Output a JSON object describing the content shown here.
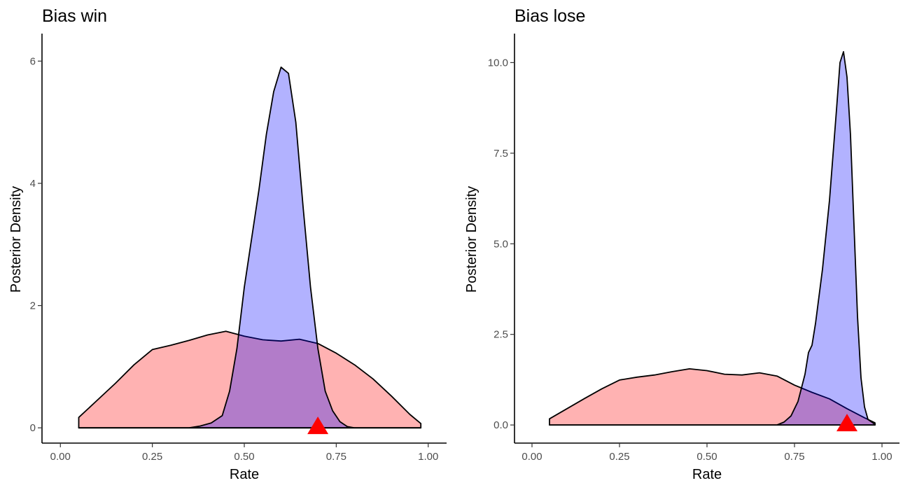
{
  "colors": {
    "prior_fill": "#ff0000",
    "posterior_fill": "#0000ff",
    "fill_opacity": 0.3,
    "outline": "#000000",
    "true_value_marker": "#ff0000"
  },
  "chart_data": [
    {
      "type": "area",
      "title": "Bias win",
      "xlabel": "Rate",
      "ylabel": "Posterior Density",
      "xlim": [
        -0.05,
        1.05
      ],
      "ylim": [
        -0.25,
        6.45
      ],
      "x_ticks": [
        "0.00",
        "0.25",
        "0.50",
        "0.75",
        "1.00"
      ],
      "x_tick_values": [
        0,
        0.25,
        0.5,
        0.75,
        1.0
      ],
      "y_ticks": [
        "0",
        "2",
        "4",
        "6"
      ],
      "y_tick_values": [
        0,
        2,
        4,
        6
      ],
      "grid": false,
      "legend": "none",
      "series": [
        {
          "fill": "#ff0000",
          "points": [
            [
              0.05,
              0.17
            ],
            [
              0.1,
              0.45
            ],
            [
              0.15,
              0.73
            ],
            [
              0.2,
              1.03
            ],
            [
              0.25,
              1.28
            ],
            [
              0.3,
              1.35
            ],
            [
              0.35,
              1.43
            ],
            [
              0.4,
              1.52
            ],
            [
              0.45,
              1.58
            ],
            [
              0.5,
              1.5
            ],
            [
              0.55,
              1.44
            ],
            [
              0.6,
              1.42
            ],
            [
              0.65,
              1.45
            ],
            [
              0.7,
              1.38
            ],
            [
              0.75,
              1.22
            ],
            [
              0.8,
              1.03
            ],
            [
              0.85,
              0.8
            ],
            [
              0.9,
              0.52
            ],
            [
              0.95,
              0.22
            ],
            [
              0.98,
              0.07
            ]
          ]
        },
        {
          "fill": "#0000ff",
          "points": [
            [
              0.05,
              0.0
            ],
            [
              0.35,
              0.0
            ],
            [
              0.38,
              0.03
            ],
            [
              0.41,
              0.08
            ],
            [
              0.44,
              0.2
            ],
            [
              0.46,
              0.6
            ],
            [
              0.48,
              1.3
            ],
            [
              0.5,
              2.3
            ],
            [
              0.52,
              3.1
            ],
            [
              0.54,
              3.9
            ],
            [
              0.56,
              4.8
            ],
            [
              0.58,
              5.5
            ],
            [
              0.6,
              5.9
            ],
            [
              0.62,
              5.8
            ],
            [
              0.64,
              5.0
            ],
            [
              0.66,
              3.6
            ],
            [
              0.68,
              2.3
            ],
            [
              0.7,
              1.3
            ],
            [
              0.72,
              0.6
            ],
            [
              0.74,
              0.28
            ],
            [
              0.76,
              0.1
            ],
            [
              0.78,
              0.02
            ],
            [
              0.8,
              0.0
            ],
            [
              0.98,
              0.0
            ]
          ]
        }
      ],
      "true_value": 0.7
    },
    {
      "type": "area",
      "title": "Bias lose",
      "xlabel": "Rate",
      "ylabel": "Posterior Density",
      "xlim": [
        -0.05,
        1.05
      ],
      "ylim": [
        -0.5,
        10.8
      ],
      "x_ticks": [
        "0.00",
        "0.25",
        "0.50",
        "0.75",
        "1.00"
      ],
      "x_tick_values": [
        0,
        0.25,
        0.5,
        0.75,
        1.0
      ],
      "y_ticks": [
        "0.0",
        "2.5",
        "5.0",
        "7.5",
        "10.0"
      ],
      "y_tick_values": [
        0,
        2.5,
        5.0,
        7.5,
        10.0
      ],
      "grid": false,
      "legend": "none",
      "series": [
        {
          "fill": "#ff0000",
          "points": [
            [
              0.05,
              0.17
            ],
            [
              0.1,
              0.45
            ],
            [
              0.15,
              0.73
            ],
            [
              0.2,
              1.0
            ],
            [
              0.25,
              1.24
            ],
            [
              0.3,
              1.32
            ],
            [
              0.35,
              1.38
            ],
            [
              0.4,
              1.47
            ],
            [
              0.45,
              1.55
            ],
            [
              0.5,
              1.5
            ],
            [
              0.55,
              1.4
            ],
            [
              0.6,
              1.38
            ],
            [
              0.65,
              1.44
            ],
            [
              0.7,
              1.35
            ],
            [
              0.75,
              1.1
            ],
            [
              0.8,
              0.9
            ],
            [
              0.85,
              0.72
            ],
            [
              0.9,
              0.45
            ],
            [
              0.95,
              0.2
            ],
            [
              0.98,
              0.06
            ]
          ]
        },
        {
          "fill": "#0000ff",
          "points": [
            [
              0.05,
              0.0
            ],
            [
              0.7,
              0.0
            ],
            [
              0.72,
              0.08
            ],
            [
              0.74,
              0.25
            ],
            [
              0.76,
              0.65
            ],
            [
              0.78,
              1.4
            ],
            [
              0.79,
              2.0
            ],
            [
              0.8,
              2.2
            ],
            [
              0.81,
              2.8
            ],
            [
              0.83,
              4.3
            ],
            [
              0.85,
              6.2
            ],
            [
              0.87,
              8.7
            ],
            [
              0.88,
              10.0
            ],
            [
              0.89,
              10.3
            ],
            [
              0.9,
              9.6
            ],
            [
              0.91,
              8.0
            ],
            [
              0.92,
              5.5
            ],
            [
              0.93,
              3.0
            ],
            [
              0.94,
              1.3
            ],
            [
              0.95,
              0.5
            ],
            [
              0.96,
              0.15
            ],
            [
              0.98,
              0.02
            ]
          ]
        }
      ],
      "true_value": 0.9
    }
  ]
}
